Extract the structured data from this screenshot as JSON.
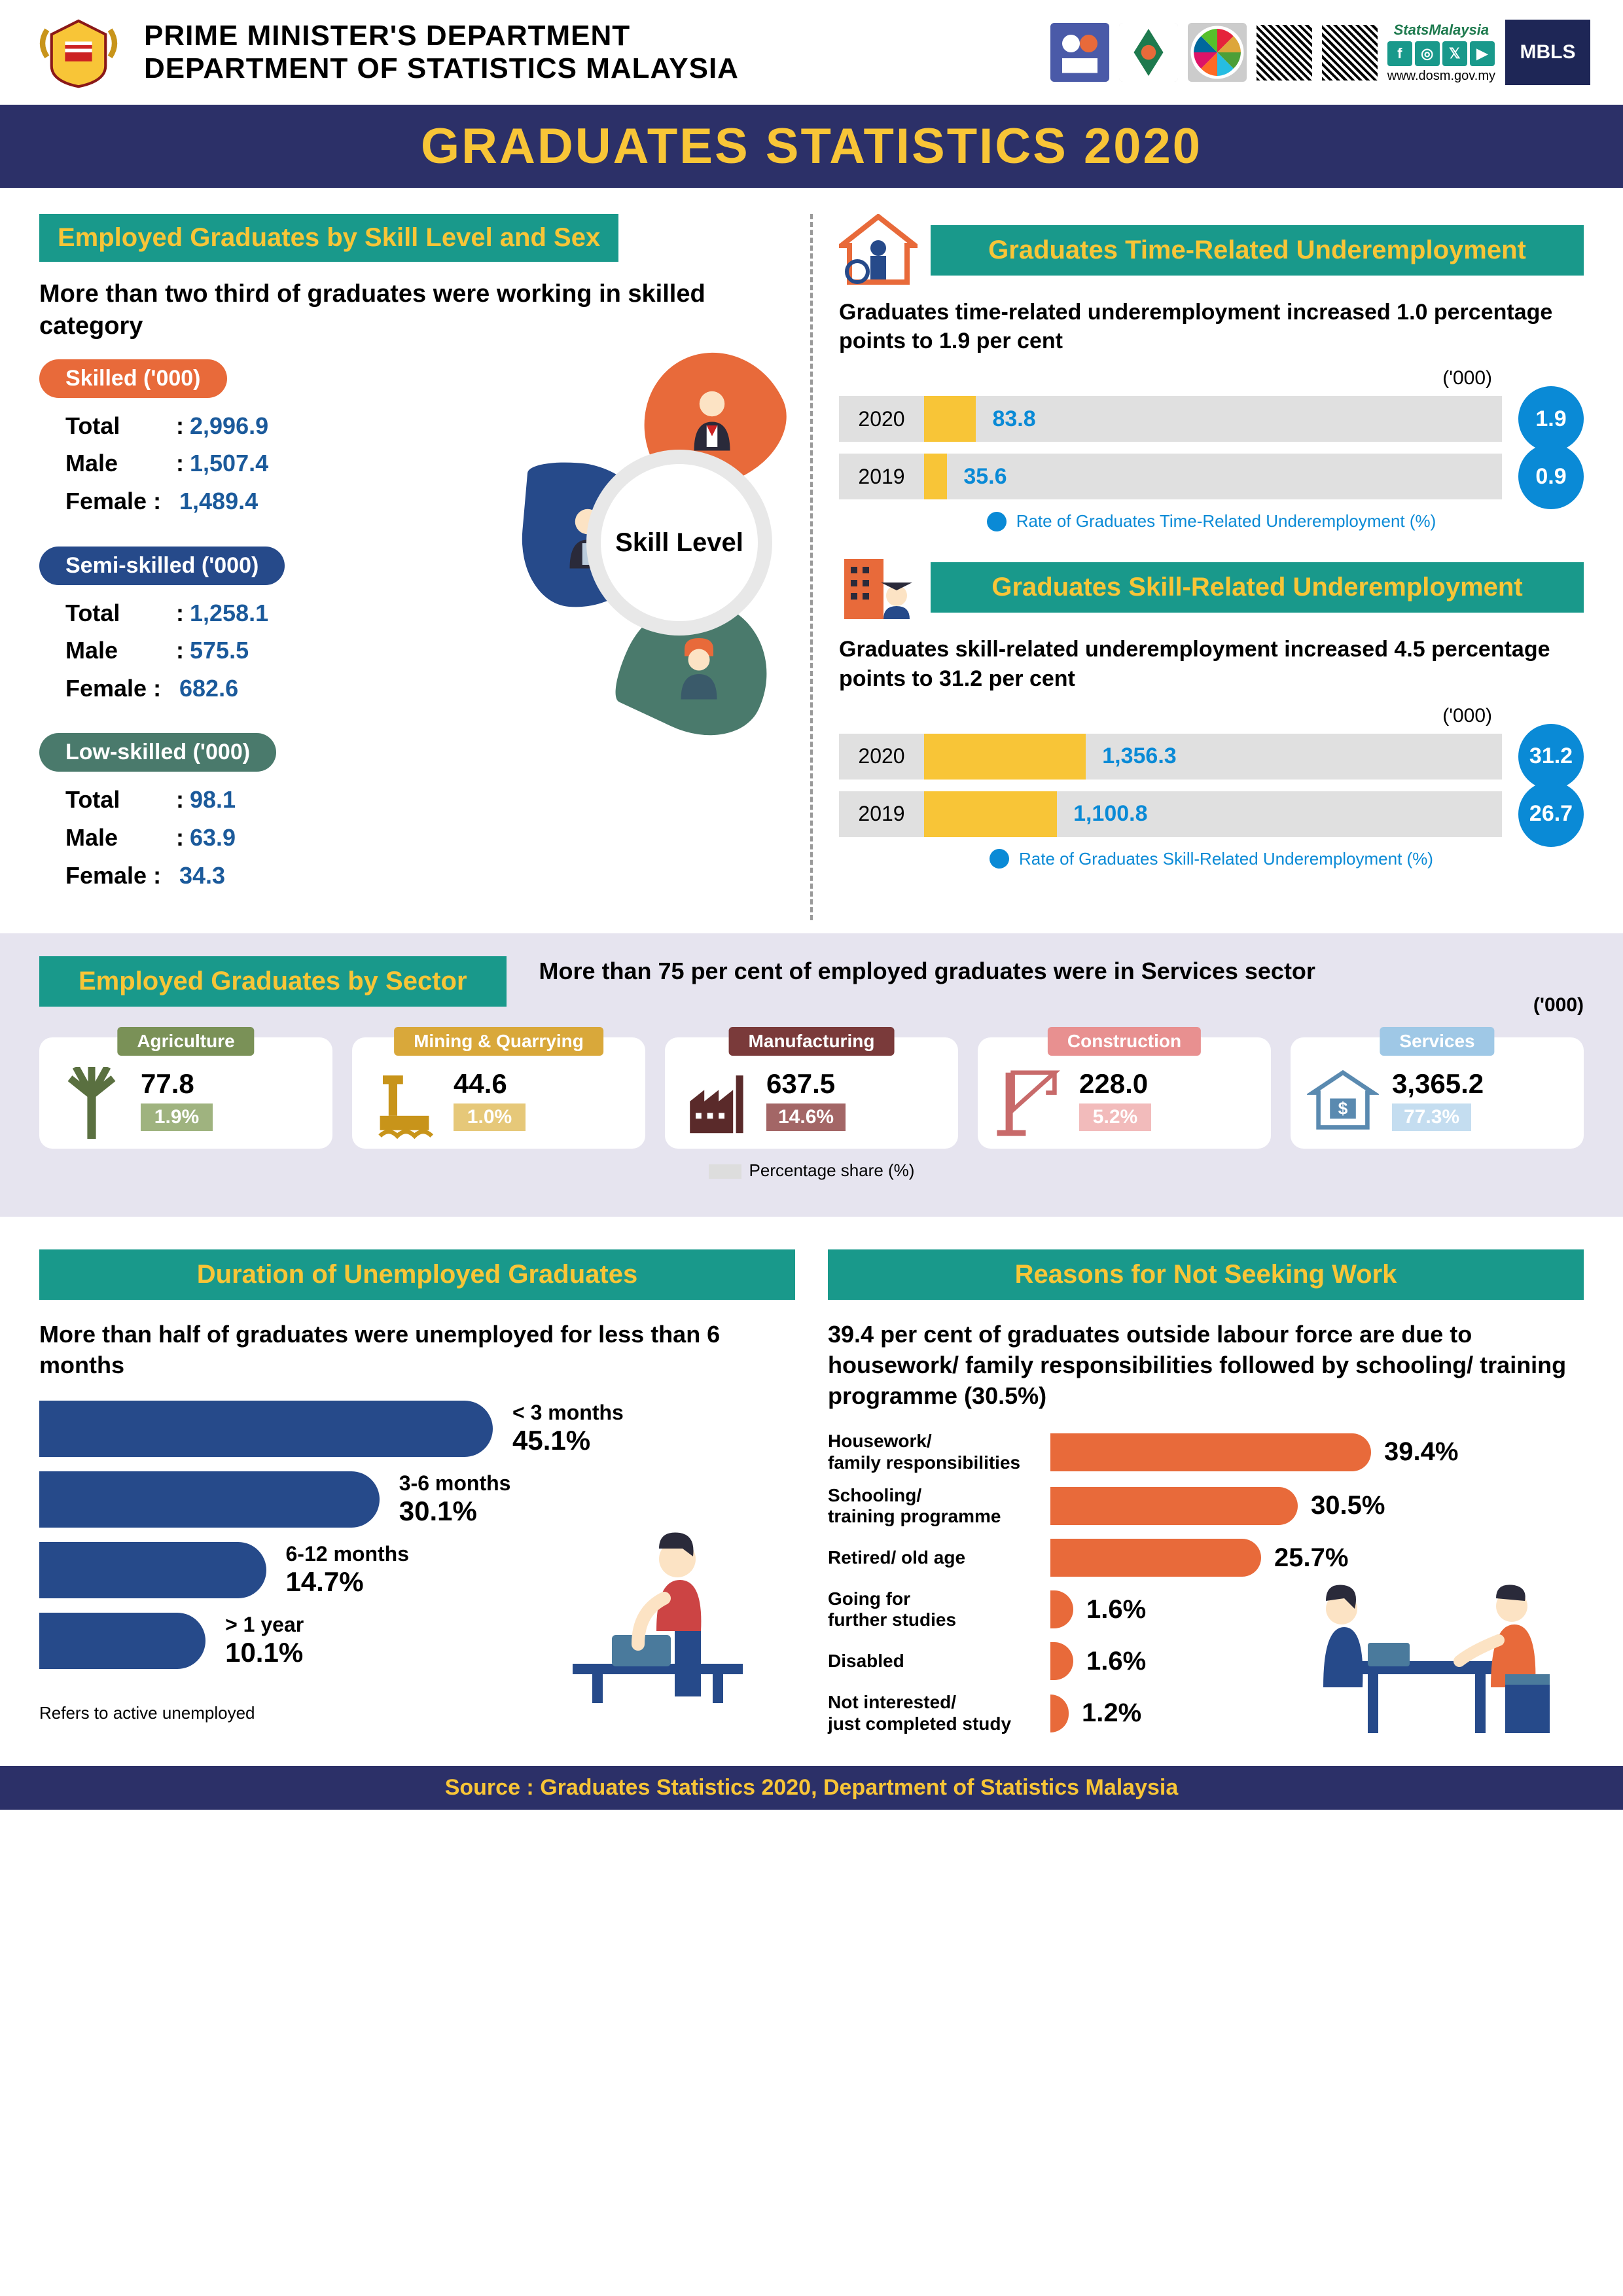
{
  "header": {
    "dept_line1": "PRIME MINISTER'S DEPARTMENT",
    "dept_line2": "DEPARTMENT OF STATISTICS MALAYSIA",
    "stats_my": "StatsMalaysia",
    "stats_url": "www.dosm.gov.my",
    "mbls": "MBLS"
  },
  "title": "GRADUATES STATISTICS 2020",
  "skill": {
    "title": "Employed Graduates by Skill Level and Sex",
    "subtitle": "More than two third of graduates were working in skilled category",
    "center_label": "Skill Level",
    "colors": {
      "skilled": "#e86a3a",
      "semi": "#264a8a",
      "low": "#4a7a6c"
    },
    "groups": [
      {
        "key": "skilled",
        "name": "Skilled ('000)",
        "total": "2,996.9",
        "male": "1,507.4",
        "female": "1,489.4"
      },
      {
        "key": "semi",
        "name": "Semi-skilled ('000)",
        "total": "1,258.1",
        "male": "575.5",
        "female": "682.6"
      },
      {
        "key": "low",
        "name": "Low-skilled ('000)",
        "total": "98.1",
        "male": "63.9",
        "female": "34.3"
      }
    ],
    "row_labels": {
      "total": "Total",
      "male": "Male",
      "female": "Female"
    }
  },
  "time_under": {
    "title": "Graduates Time-Related Underemployment",
    "subtitle": "Graduates time-related underemployment increased 1.0 percentage points to 1.9 per cent",
    "unit": "('000)",
    "rows": [
      {
        "year": "2020",
        "value": "83.8",
        "rate": "1.9",
        "w": 9
      },
      {
        "year": "2019",
        "value": "35.6",
        "rate": "0.9",
        "w": 4
      }
    ],
    "legend": "Rate of Graduates Time-Related Underemployment (%)"
  },
  "skill_under": {
    "title": "Graduates Skill-Related Underemployment",
    "subtitle": "Graduates skill-related underemployment increased 4.5 percentage points to 31.2 per cent",
    "unit": "('000)",
    "rows": [
      {
        "year": "2020",
        "value": "1,356.3",
        "rate": "31.2",
        "w": 28
      },
      {
        "year": "2019",
        "value": "1,100.8",
        "rate": "26.7",
        "w": 23
      }
    ],
    "legend": "Rate of Graduates Skill-Related Underemployment (%)"
  },
  "sector": {
    "title": "Employed Graduates by Sector",
    "subtitle": "More than 75 per cent of employed graduates were in Services sector",
    "unit": "('000)",
    "items": [
      {
        "name": "Agriculture",
        "val": "77.8",
        "pct": "1.9%",
        "tab": "#7a9157",
        "pct_bg": "#9fb37f"
      },
      {
        "name": "Mining & Quarrying",
        "val": "44.6",
        "pct": "1.0%",
        "tab": "#d9a83a",
        "pct_bg": "#e6c879"
      },
      {
        "name": "Manufacturing",
        "val": "637.5",
        "pct": "14.6%",
        "tab": "#7a3a3a",
        "pct_bg": "#a36666"
      },
      {
        "name": "Construction",
        "val": "228.0",
        "pct": "5.2%",
        "tab": "#e89090",
        "pct_bg": "#f2bbbb"
      },
      {
        "name": "Services",
        "val": "3,365.2",
        "pct": "77.3%",
        "tab": "#9fc8e6",
        "pct_bg": "#c4ddf0"
      }
    ],
    "legend": "Percentage share (%)"
  },
  "duration": {
    "title": "Duration of Unemployed Graduates",
    "subtitle": "More than half of graduates were unemployed for less than 6 months",
    "bars": [
      {
        "cat": "< 3 months",
        "pct": "45.1%",
        "w": 60
      },
      {
        "cat": "3-6 months",
        "pct": "30.1%",
        "w": 45
      },
      {
        "cat": "6-12 months",
        "pct": "14.7%",
        "w": 30
      },
      {
        "cat": "> 1 year",
        "pct": "10.1%",
        "w": 22
      }
    ],
    "note": "Refers to active unemployed"
  },
  "reasons": {
    "title": "Reasons for Not Seeking Work",
    "subtitle": "39.4 per cent of graduates outside labour force are due to housework/ family responsibilities followed by schooling/ training programme (30.5%)",
    "bars": [
      {
        "cat": "Housework/\nfamily responsibilities",
        "pct": "39.4%",
        "w": 70
      },
      {
        "cat": "Schooling/\ntraining programme",
        "pct": "30.5%",
        "w": 54
      },
      {
        "cat": "Retired/ old age",
        "pct": "25.7%",
        "w": 46
      },
      {
        "cat": "Going for\nfurther studies",
        "pct": "1.6%",
        "w": 5
      },
      {
        "cat": "Disabled",
        "pct": "1.6%",
        "w": 5
      },
      {
        "cat": "Not interested/\njust completed study",
        "pct": "1.2%",
        "w": 4
      }
    ]
  },
  "footer": "Source : Graduates Statistics 2020, Department of Statistics Malaysia"
}
